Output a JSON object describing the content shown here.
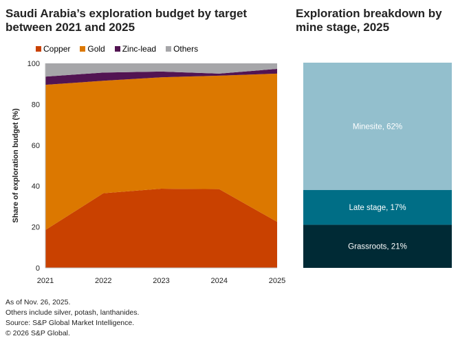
{
  "left_title": "Saudi Arabia’s exploration budget by target between 2021 and 2025",
  "right_title": "Exploration breakdown by mine stage, 2025",
  "chart_data": [
    {
      "type": "area",
      "stacked": true,
      "categories": [
        "2021",
        "2022",
        "2023",
        "2024",
        "2025"
      ],
      "ylabel": "Share of exploration budget (%)",
      "xlabel": "",
      "ylim": [
        0,
        100
      ],
      "yticks": [
        0,
        20,
        40,
        60,
        80,
        100
      ],
      "grid": false,
      "legend": "top",
      "series": [
        {
          "name": "Copper",
          "color": "#c94100",
          "values": [
            18.5,
            36.5,
            38.7,
            38.5,
            22.5
          ]
        },
        {
          "name": "Gold",
          "color": "#dc7800",
          "values": [
            71,
            55,
            54.5,
            55.5,
            72.5
          ]
        },
        {
          "name": "Zinc-lead",
          "color": "#521452",
          "values": [
            4,
            4,
            2.8,
            1,
            2.3
          ]
        },
        {
          "name": "Others",
          "color": "#a6a6a9",
          "values": [
            6.5,
            4.5,
            4,
            5,
            2.7
          ]
        }
      ]
    },
    {
      "type": "bar",
      "stacked": true,
      "categories": [
        "2025"
      ],
      "series": [
        {
          "name": "Grassroots",
          "value": 21,
          "label": "Grassroots, 21%",
          "color": "#002a35"
        },
        {
          "name": "Late stage",
          "value": 17,
          "label": "Late stage, 17%",
          "color": "#006e86"
        },
        {
          "name": "Minesite",
          "value": 62,
          "label": "Minesite, 62%",
          "color": "#93bfcd"
        }
      ]
    }
  ],
  "footnotes": [
    "As of Nov. 26, 2025.",
    "Others include silver, potash, lanthanides.",
    "Source: S&P Global Market Intelligence.",
    "© 2026 S&P Global."
  ]
}
